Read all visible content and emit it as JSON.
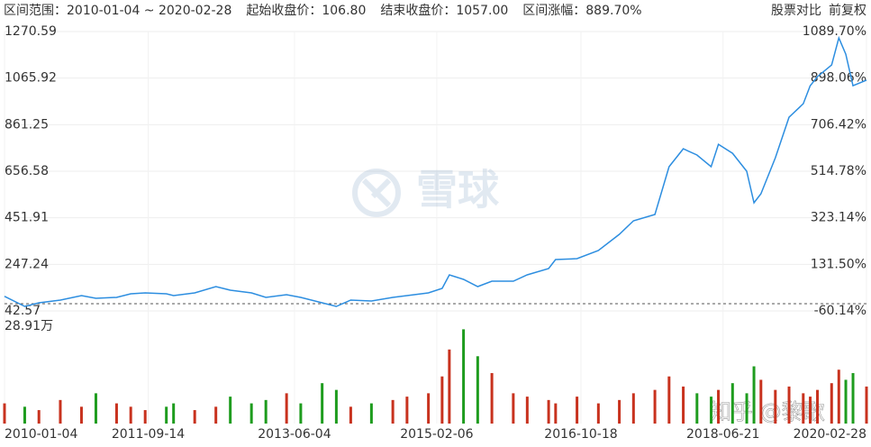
{
  "chart_data": [
    {
      "type": "line",
      "header": {
        "range_label": "区间范围：",
        "range": "2010-01-04 ~ 2020-02-28",
        "start_label": "起始收盘价：",
        "start_close": {
          "value": 106.8,
          "label": "106.80"
        },
        "end_label": "结束收盘价：",
        "end_close": {
          "value": 1057,
          "label": "1057.00"
        },
        "change_label": "区间涨幅：",
        "change": {
          "value": 889.7,
          "label": "889.70%"
        }
      },
      "buttons": [
        "股票对比",
        "前复权"
      ],
      "watermark": "雪球",
      "credit": "知乎 @黎歌",
      "color": "#2d8ee0",
      "up_color": "#c8321e",
      "down_color": "#1e9c1e",
      "grid": true,
      "x": [
        "2010-01-04",
        "2010-04",
        "2010-06",
        "2010-09",
        "2010-12",
        "2011-02",
        "2011-05",
        "2011-07",
        "2011-09",
        "2011-12",
        "2012-01",
        "2012-04",
        "2012-07",
        "2012-09",
        "2012-12",
        "2013-02",
        "2013-05",
        "2013-07",
        "2013-10",
        "2013-12",
        "2014-02",
        "2014-05",
        "2014-08",
        "2014-10",
        "2015-01",
        "2015-03",
        "2015-04",
        "2015-06",
        "2015-08",
        "2015-10",
        "2016-01",
        "2016-03",
        "2016-06",
        "2016-07",
        "2016-10",
        "2017-01",
        "2017-04",
        "2017-06",
        "2017-09",
        "2017-11",
        "2018-01",
        "2018-03",
        "2018-05",
        "2018-06",
        "2018-08",
        "2018-10",
        "2018-11",
        "2018-12",
        "2019-02",
        "2019-04",
        "2019-06",
        "2019-07",
        "2019-08",
        "2019-10",
        "2019-11",
        "2019-12",
        "2020-01",
        "2020-02-28"
      ],
      "values": [
        106.8,
        62.4,
        78.2,
        90.1,
        109.9,
        98,
        102,
        117.8,
        121.8,
        117.8,
        109.9,
        121.8,
        149.5,
        133.7,
        121.8,
        102,
        113.9,
        102,
        78.2,
        62.4,
        90.1,
        86.1,
        102,
        109.9,
        121.8,
        141.6,
        201,
        181.2,
        149.5,
        173.3,
        173.3,
        201,
        228.7,
        268.3,
        272.3,
        307.9,
        379.2,
        438.6,
        466.3,
        676.2,
        755.4,
        727.7,
        676.2,
        775.2,
        735.6,
        656.4,
        517.8,
        557.4,
        715.8,
        893.9,
        953.4,
        1032.6,
        1072.2,
        1123.7,
        1242.4,
        1171.2,
        1032.6,
        1057
      ],
      "xlim": [
        "2010-01-04",
        "2020-02-28"
      ],
      "xticks": [
        "2010-01-04",
        "2011-09-14",
        "2013-06-04",
        "2015-02-06",
        "2016-10-18",
        "2018-06-21",
        "2020-02-28"
      ],
      "ylim": [
        42.57,
        1270.59
      ],
      "yticks": [
        42.57,
        247.24,
        451.91,
        656.58,
        861.25,
        1065.92,
        1270.59
      ],
      "y2lim": [
        -60.14,
        1089.7
      ],
      "y2ticks": [
        {
          "value": -60.14,
          "label": "-60.14%"
        },
        {
          "value": 131.5,
          "label": "131.50%"
        },
        {
          "value": 323.14,
          "label": "323.14%"
        },
        {
          "value": 514.78,
          "label": "514.78%"
        },
        {
          "value": 706.42,
          "label": "706.42%"
        },
        {
          "value": 898.06,
          "label": "898.06%"
        },
        {
          "value": 1089.7,
          "label": "1089.70%"
        }
      ]
    },
    {
      "type": "bar",
      "values": [
        6,
        5,
        4,
        7,
        5,
        9,
        6,
        5,
        4,
        5,
        6,
        4,
        5,
        8,
        6,
        7,
        9,
        6,
        12,
        10,
        5,
        6,
        7,
        8,
        9,
        14,
        22,
        28,
        20,
        15,
        9,
        8,
        7,
        6,
        8,
        6,
        7,
        9,
        10,
        14,
        11,
        9,
        8,
        10,
        12,
        9,
        17,
        13,
        10,
        11,
        9,
        8,
        10,
        12,
        16,
        13,
        15,
        11
      ],
      "colors": [
        "#c8321e",
        "#1e9c1e",
        "#c8321e",
        "#c8321e",
        "#c8321e",
        "#1e9c1e",
        "#c8321e",
        "#c8321e",
        "#c8321e",
        "#1e9c1e",
        "#1e9c1e",
        "#c8321e",
        "#c8321e",
        "#1e9c1e",
        "#1e9c1e",
        "#1e9c1e",
        "#c8321e",
        "#1e9c1e",
        "#1e9c1e",
        "#1e9c1e",
        "#c8321e",
        "#1e9c1e",
        "#c8321e",
        "#c8321e",
        "#c8321e",
        "#c8321e",
        "#c8321e",
        "#1e9c1e",
        "#1e9c1e",
        "#c8321e",
        "#c8321e",
        "#c8321e",
        "#c8321e",
        "#c8321e",
        "#c8321e",
        "#c8321e",
        "#c8321e",
        "#c8321e",
        "#c8321e",
        "#c8321e",
        "#c8321e",
        "#1e9c1e",
        "#1e9c1e",
        "#c8321e",
        "#1e9c1e",
        "#1e9c1e",
        "#1e9c1e",
        "#c8321e",
        "#c8321e",
        "#c8321e",
        "#c8321e",
        "#c8321e",
        "#c8321e",
        "#c8321e",
        "#c8321e",
        "#1e9c1e",
        "#1e9c1e",
        "#c8321e"
      ],
      "ylim": [
        0,
        28.91
      ],
      "yticks": [
        {
          "value": 28.91,
          "label": "28.91万"
        }
      ]
    }
  ]
}
